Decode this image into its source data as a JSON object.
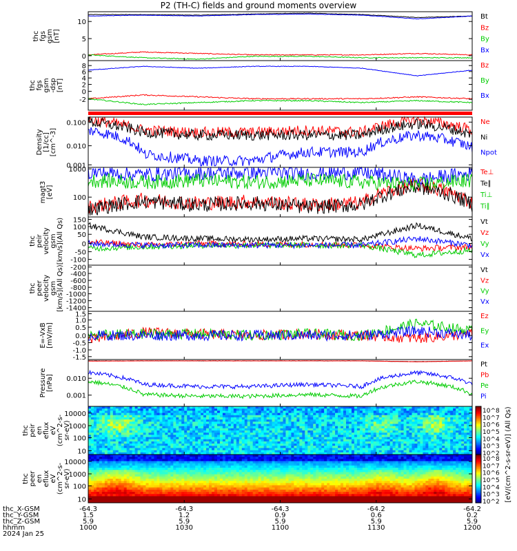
{
  "title": "P2 (TH-C) fields and ground moments overview",
  "colors": {
    "black": "#000000",
    "red": "#ff0000",
    "green": "#00cc00",
    "blue": "#0000ff",
    "bar": "#ff0000"
  },
  "panels": [
    {
      "ylabel": [
        "thc",
        "fgs",
        "gsm",
        "[nT]"
      ],
      "ticks": [
        "10",
        "5",
        "0"
      ],
      "legend": [
        "Bt",
        "Bz",
        "By",
        "Bx"
      ]
    },
    {
      "ylabel": [
        "thc",
        "fgs",
        "gsm",
        "-dsp",
        "[nT]"
      ],
      "ticks": [
        "8",
        "6",
        "4",
        "2",
        "0",
        "-2"
      ],
      "legend": [
        "Bz",
        "By",
        "Bx"
      ]
    },
    {
      "ylabel": [
        "Density",
        "[1/cc]",
        "[cm^-3]"
      ],
      "ticks": [
        "0.100",
        "0.010",
        "0.001"
      ],
      "legend": [
        "Ne",
        "Ni",
        "Npot"
      ]
    },
    {
      "ylabel": [
        "magt3",
        "[eV]"
      ],
      "ticks": [
        "1000",
        "100"
      ],
      "legend": [
        "Te⊥",
        "Te∥",
        "Ti⊥",
        "Ti∥"
      ]
    },
    {
      "ylabel": [
        "thc",
        "peir",
        "velocity",
        "gsm",
        "[km/s](All Qs)"
      ],
      "ticks": [
        "150",
        "100",
        "50",
        "0",
        "-50",
        "-100"
      ],
      "legend": [
        "Vt",
        "Vz",
        "Vy",
        "Vx"
      ]
    },
    {
      "ylabel": [
        "thc",
        "peer",
        "velocity",
        "gsm",
        "[km/s](All Qs)"
      ],
      "ticks": [
        "-200",
        "-400",
        "-600",
        "-800",
        "-1000",
        "-1200",
        "-1400"
      ],
      "legend": [
        "Vt",
        "Vz",
        "Vy",
        "Vx"
      ]
    },
    {
      "ylabel": [
        "E=-VxB",
        "[mV/m]"
      ],
      "ticks": [
        "1.5",
        "1.0",
        "0.5",
        "0.0",
        "-0.5",
        "-1.0",
        "-1.5"
      ],
      "legend": [
        "Ez",
        "Ey",
        "Ex"
      ]
    },
    {
      "ylabel": [
        "Pressure",
        "[nPa]"
      ],
      "ticks": [
        "0.010",
        "0.001"
      ],
      "legend": [
        "Pt",
        "Pb",
        "Pe",
        "Pi"
      ]
    },
    {
      "ylabel": [
        "thc",
        "peir",
        "en",
        "eflux",
        "eV",
        "(cm^2-s-",
        "sr-eV)"
      ],
      "ticks": [
        "10000",
        "1000",
        "100",
        "10"
      ],
      "legend": []
    },
    {
      "ylabel": [
        "thc",
        "peer",
        "en",
        "eflux",
        "eV",
        "(cm^2-s-",
        "sr-eV)"
      ],
      "ticks": [
        "10000",
        "1000",
        "100",
        "10"
      ],
      "legend": []
    }
  ],
  "colorbar": {
    "label": "[eV/(cm^2-s-sr-eV)] (All Qs)",
    "ticks_top": [
      "10^8",
      "10^7",
      "10^6",
      "10^5",
      "10^4",
      "10^3",
      "10^2"
    ],
    "ticks_bottom": [
      "10^8",
      "10^7",
      "10^6",
      "10^5",
      "10^4",
      "10^3",
      "10^2"
    ]
  },
  "xaxis": {
    "row_labels": [
      "thc_X-GSM",
      "thc_Y-GSM",
      "thc_Z-GSM",
      "hhmm",
      "2024 Jan 25"
    ],
    "columns": [
      {
        "x": "-64.3",
        "y": "1.5",
        "z": "5.9",
        "t": "1000"
      },
      {
        "x": "-64.3",
        "y": "1.2",
        "z": "5.9",
        "t": "1030"
      },
      {
        "x": "-64.3",
        "y": "0.9",
        "z": "5.9",
        "t": "1100"
      },
      {
        "x": "-64.2",
        "y": "0.6",
        "z": "5.9",
        "t": "1130"
      },
      {
        "x": "-64.2",
        "y": "0.2",
        "z": "5.9",
        "t": "1200"
      }
    ]
  },
  "chart_data": {
    "type": "line",
    "title": "P2 (TH-C) fields and ground moments overview",
    "time_range": [
      "1000",
      "1200"
    ],
    "panels": [
      {
        "name": "thc fgs gsm [nT]",
        "ylim": [
          -2,
          15
        ],
        "series": [
          {
            "name": "Bt",
            "color": "#000000",
            "approx": [
              14,
              14,
              13.8,
              14.2,
              14.5,
              14,
              13,
              13.5
            ]
          },
          {
            "name": "Bz",
            "color": "#ff0000",
            "approx": [
              0,
              1,
              0.5,
              0,
              0,
              0,
              0.5,
              0
            ]
          },
          {
            "name": "By",
            "color": "#00cc00",
            "approx": [
              0,
              -1,
              -1.5,
              -0.5,
              -0.5,
              -1,
              -1,
              -1
            ]
          },
          {
            "name": "Bx",
            "color": "#0000ff",
            "approx": [
              13.5,
              13.8,
              13.5,
              14,
              14.2,
              13.8,
              12.5,
              13.5
            ]
          }
        ]
      },
      {
        "name": "thc fgs gsm-dsp [nT]",
        "ylim": [
          -4,
          9
        ],
        "series": [
          {
            "name": "Bz",
            "color": "#ff0000",
            "approx": [
              -1,
              0,
              -0.5,
              -1,
              -1,
              -1,
              -0.5,
              -1
            ]
          },
          {
            "name": "By",
            "color": "#00cc00",
            "approx": [
              -1,
              -2.5,
              -2,
              -1.5,
              -1.5,
              -2,
              -1.5,
              -2
            ]
          },
          {
            "name": "Bx",
            "color": "#0000ff",
            "approx": [
              6.5,
              7.5,
              7,
              7.5,
              7.5,
              7,
              5,
              6.5
            ]
          }
        ]
      },
      {
        "name": "Density [1/cc]",
        "ylim": [
          0.001,
          0.2
        ],
        "log": true,
        "series": [
          {
            "name": "Ne",
            "color": "#ff0000",
            "approx": [
              0.15,
              0.05,
              0.04,
              0.04,
              0.05,
              0.04,
              0.15,
              0.05
            ]
          },
          {
            "name": "Ni",
            "color": "#000000",
            "approx": [
              0.12,
              0.04,
              0.03,
              0.03,
              0.03,
              0.03,
              0.1,
              0.03
            ]
          },
          {
            "name": "Npot",
            "color": "#0000ff",
            "approx": [
              0.05,
              0.004,
              0.002,
              0.002,
              0.005,
              0.005,
              0.03,
              0.008
            ]
          }
        ]
      },
      {
        "name": "magt3 [eV]",
        "ylim": [
          30,
          1000
        ],
        "log": true,
        "series": [
          {
            "name": "Te⊥",
            "color": "#ff0000",
            "approx": [
              60,
              100,
              80,
              90,
              70,
              80,
              300,
              80
            ]
          },
          {
            "name": "Te∥",
            "color": "#000000",
            "approx": [
              50,
              90,
              70,
              80,
              60,
              70,
              250,
              70
            ]
          },
          {
            "name": "Ti⊥",
            "color": "#0000ff",
            "approx": [
              700,
              600,
              650,
              700,
              650,
              700,
              400,
              650
            ]
          },
          {
            "name": "Ti∥",
            "color": "#00cc00",
            "approx": [
              400,
              350,
              400,
              350,
              400,
              350,
              300,
              400
            ]
          }
        ]
      },
      {
        "name": "thc peir velocity gsm [km/s]",
        "ylim": [
          -120,
          170
        ],
        "series": [
          {
            "name": "Vt",
            "color": "#000000",
            "approx": [
              120,
              50,
              40,
              35,
              40,
              35,
              120,
              40
            ]
          },
          {
            "name": "Vz",
            "color": "#ff0000",
            "approx": [
              20,
              0,
              10,
              5,
              5,
              0,
              -20,
              -10
            ]
          },
          {
            "name": "Vy",
            "color": "#00cc00",
            "approx": [
              -20,
              -10,
              0,
              0,
              0,
              0,
              -60,
              -30
            ]
          },
          {
            "name": "Vx",
            "color": "#0000ff",
            "approx": [
              10,
              0,
              0,
              0,
              0,
              0,
              40,
              0
            ]
          }
        ]
      },
      {
        "name": "thc peer velocity gsm [km/s]",
        "ylim": [
          -1450,
          -150
        ],
        "series": []
      },
      {
        "name": "E=-VxB [mV/m]",
        "ylim": [
          -1.6,
          1.6
        ],
        "series": [
          {
            "name": "Ez",
            "color": "#ff0000",
            "approx": [
              -0.3,
              0.2,
              0.1,
              0,
              0.1,
              0,
              -0.2,
              0.1
            ]
          },
          {
            "name": "Ey",
            "color": "#00cc00",
            "approx": [
              0,
              0.1,
              0.1,
              0,
              0.1,
              0,
              0.8,
              0.3
            ]
          },
          {
            "name": "Ex",
            "color": "#0000ff",
            "approx": [
              0,
              0,
              0,
              0,
              0,
              0,
              0.3,
              0
            ]
          }
        ]
      },
      {
        "name": "Pressure [nPa]",
        "ylim": [
          0.0001,
          0.06
        ],
        "log": true,
        "series": [
          {
            "name": "Pt",
            "color": "#000000",
            "approx": [
              0.05,
              0.05,
              0.05,
              0.05,
              0.05,
              0.05,
              0.045,
              0.05
            ]
          },
          {
            "name": "Pb",
            "color": "#ff0000",
            "approx": [
              0.048,
              0.05,
              0.05,
              0.05,
              0.05,
              0.05,
              0.044,
              0.05
            ]
          },
          {
            "name": "Pe",
            "color": "#00cc00",
            "approx": [
              0.003,
              0.0005,
              0.0004,
              0.0004,
              0.0005,
              0.0004,
              0.003,
              0.0005
            ]
          },
          {
            "name": "Pi",
            "color": "#0000ff",
            "approx": [
              0.01,
              0.002,
              0.0015,
              0.0015,
              0.002,
              0.0015,
              0.01,
              0.002
            ]
          }
        ]
      },
      {
        "name": "thc peir en eflux",
        "type": "heatmap",
        "ylim": [
          5,
          20000
        ],
        "log": true
      },
      {
        "name": "thc peer en eflux",
        "type": "heatmap",
        "ylim": [
          5,
          20000
        ],
        "log": true
      }
    ]
  }
}
